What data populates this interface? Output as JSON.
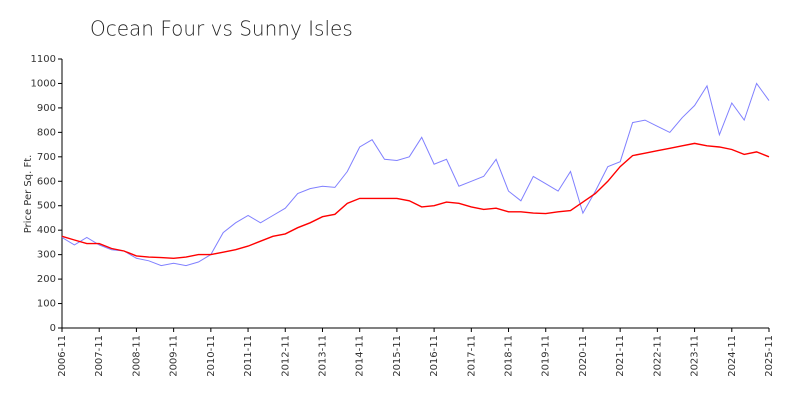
{
  "chart_data": {
    "type": "line",
    "title": "Ocean Four vs Sunny Isles",
    "y_label": "Price Per Sq. Ft.",
    "x": [
      "2006-11",
      "2007-03",
      "2007-07",
      "2007-11",
      "2008-03",
      "2008-07",
      "2008-11",
      "2009-03",
      "2009-07",
      "2009-11",
      "2010-03",
      "2010-07",
      "2010-11",
      "2011-03",
      "2011-07",
      "2011-11",
      "2012-03",
      "2012-07",
      "2012-11",
      "2013-03",
      "2013-07",
      "2013-11",
      "2014-03",
      "2014-07",
      "2014-11",
      "2015-03",
      "2015-07",
      "2015-11",
      "2016-03",
      "2016-07",
      "2016-11",
      "2017-03",
      "2017-07",
      "2017-11",
      "2018-03",
      "2018-07",
      "2018-11",
      "2019-03",
      "2019-07",
      "2019-11",
      "2020-03",
      "2020-07",
      "2020-11",
      "2021-03",
      "2021-07",
      "2021-11",
      "2022-03",
      "2022-07",
      "2022-11",
      "2023-03",
      "2023-07",
      "2023-11",
      "2024-03",
      "2024-07",
      "2024-11",
      "2025-03",
      "2025-07",
      "2025-11"
    ],
    "series": [
      {
        "color": "#8080ff",
        "values": [
          370,
          340,
          370,
          340,
          320,
          315,
          285,
          275,
          255,
          265,
          255,
          270,
          300,
          390,
          430,
          460,
          430,
          460,
          490,
          550,
          570,
          580,
          575,
          640,
          740,
          770,
          690,
          685,
          700,
          780,
          670,
          690,
          580,
          600,
          620,
          690,
          560,
          520,
          620,
          590,
          560,
          640,
          470,
          560,
          660,
          680,
          840,
          850,
          825,
          800,
          860,
          910,
          990,
          790,
          920,
          850,
          1000,
          930
        ]
      },
      {
        "color": "#ff0000",
        "values": [
          375,
          360,
          345,
          345,
          325,
          315,
          295,
          290,
          288,
          285,
          290,
          300,
          300,
          310,
          320,
          335,
          355,
          375,
          385,
          410,
          430,
          455,
          465,
          510,
          530,
          530,
          530,
          530,
          520,
          495,
          500,
          515,
          510,
          495,
          485,
          490,
          475,
          475,
          470,
          468,
          475,
          480,
          515,
          550,
          600,
          660,
          705,
          715,
          725,
          735,
          745,
          755,
          745,
          740,
          730,
          710,
          720,
          700
        ]
      }
    ],
    "xlim": [
      "2006-11",
      "2025-11"
    ],
    "xticks": [
      "2006-11",
      "2007-11",
      "2008-11",
      "2009-11",
      "2010-11",
      "2011-11",
      "2012-11",
      "2013-11",
      "2014-11",
      "2015-11",
      "2016-11",
      "2017-11",
      "2018-11",
      "2019-11",
      "2020-11",
      "2021-11",
      "2022-11",
      "2023-11",
      "2024-11",
      "2025-11"
    ],
    "ylim": [
      0,
      1100
    ],
    "yticks": [
      0,
      100,
      200,
      300,
      400,
      500,
      600,
      700,
      800,
      900,
      1000,
      1100
    ]
  }
}
